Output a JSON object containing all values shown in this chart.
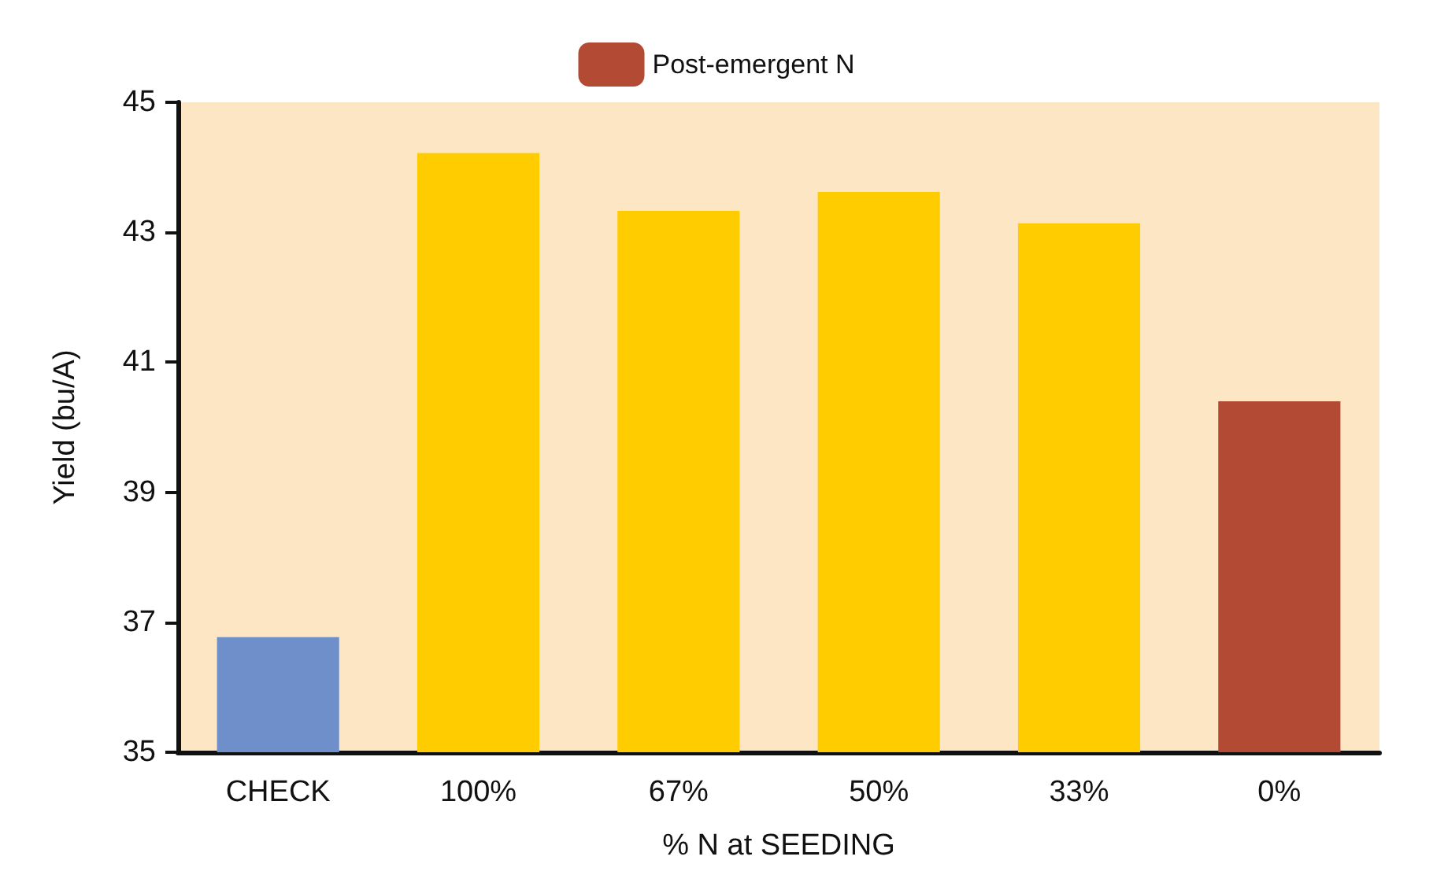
{
  "chart_data": {
    "type": "bar",
    "xlabel": "% N at SEEDING",
    "ylabel": "Yield (bu/A)",
    "categories": [
      "CHECK",
      "100%",
      "67%",
      "50%",
      "33%",
      "0%"
    ],
    "stacked": true,
    "series": [
      {
        "values": [
          36.77,
          44.22,
          43.33,
          43.62,
          43.14,
          null
        ],
        "colors": [
          "#6f8fca",
          "#ffcc00",
          "#ffcc00",
          "#ffcc00",
          "#ffcc00",
          null
        ]
      },
      {
        "name": "Post-emergent N",
        "color": "#b34a33",
        "values": [
          null,
          null,
          null,
          null,
          null,
          40.4
        ]
      }
    ],
    "ylim": [
      35,
      45
    ],
    "yticks": [
      35,
      37,
      39,
      41,
      43,
      45
    ],
    "grid": false,
    "legend": "top"
  }
}
